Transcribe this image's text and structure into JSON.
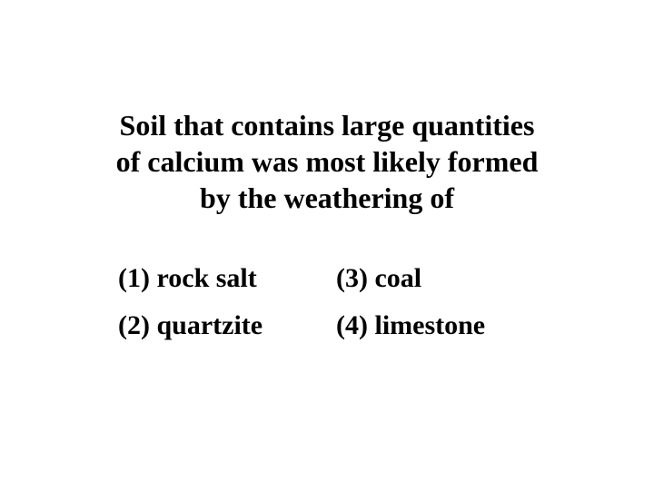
{
  "question": {
    "line1": "Soil that contains large quantities",
    "line2": "of calcium was most likely formed",
    "line3": "by the weathering of"
  },
  "options": {
    "opt1": "(1) rock salt",
    "opt2": "(2) quartzite",
    "opt3": "(3) coal",
    "opt4": "(4) limestone"
  },
  "colors": {
    "background": "#ffffff",
    "text": "#000000"
  },
  "typography": {
    "font_family": "Times New Roman",
    "question_fontsize": 32,
    "option_fontsize": 30,
    "font_weight": "bold"
  }
}
